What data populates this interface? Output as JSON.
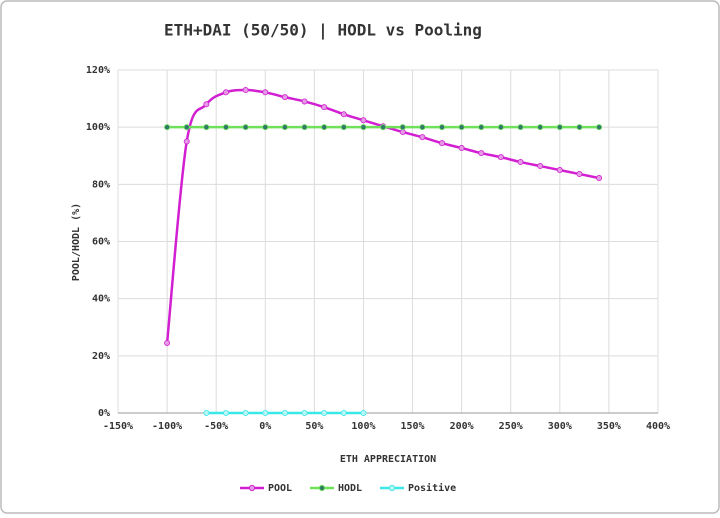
{
  "chart_data": {
    "type": "line",
    "title": "ETH+DAI (50/50) | HODL vs Pooling",
    "x_label": "ETH APPRECIATION",
    "y_label": "POOL/HODL (%)",
    "xlim": [
      -150,
      400
    ],
    "ylim": [
      0,
      120
    ],
    "xticks": [
      {
        "value": -150,
        "label": "-150%"
      },
      {
        "value": -100,
        "label": "-100%"
      },
      {
        "value": -50,
        "label": "-50%"
      },
      {
        "value": 0,
        "label": "0%"
      },
      {
        "value": 50,
        "label": "50%"
      },
      {
        "value": 100,
        "label": "100%"
      },
      {
        "value": 150,
        "label": "150%"
      },
      {
        "value": 200,
        "label": "200%"
      },
      {
        "value": 250,
        "label": "250%"
      },
      {
        "value": 300,
        "label": "300%"
      },
      {
        "value": 350,
        "label": "350%"
      },
      {
        "value": 400,
        "label": "400%"
      }
    ],
    "yticks": [
      {
        "value": 0,
        "label": "0%"
      },
      {
        "value": 20,
        "label": "20%"
      },
      {
        "value": 40,
        "label": "40%"
      },
      {
        "value": 60,
        "label": "60%"
      },
      {
        "value": 80,
        "label": "80%"
      },
      {
        "value": 100,
        "label": "100%"
      },
      {
        "value": 120,
        "label": "120%"
      }
    ],
    "grid": true,
    "legend": "bottom",
    "series": [
      {
        "name": "POOL",
        "color": "#d21fd2",
        "marker_color": "#e59ae5",
        "smooth": true,
        "x": [
          -100,
          -80,
          -60,
          -40,
          -20,
          0,
          20,
          40,
          60,
          80,
          100,
          120,
          140,
          160,
          180,
          200,
          220,
          240,
          260,
          280,
          300,
          320,
          340
        ],
        "values": [
          24.5,
          95,
          108,
          112.2,
          113,
          112.2,
          110.5,
          109,
          107,
          104.5,
          102.4,
          100.3,
          98.3,
          96.5,
          94.4,
          92.7,
          90.9,
          89.5,
          87.8,
          86.4,
          85,
          83.6,
          82.2
        ]
      },
      {
        "name": "HODL",
        "color": "#6ee05a",
        "marker_color": "#2f7a6a",
        "smooth": false,
        "x": [
          -100,
          -80,
          -60,
          -40,
          -20,
          0,
          20,
          40,
          60,
          80,
          100,
          120,
          140,
          160,
          180,
          200,
          220,
          240,
          260,
          280,
          300,
          320,
          340
        ],
        "values": [
          100,
          100,
          100,
          100,
          100,
          100,
          100,
          100,
          100,
          100,
          100,
          100,
          100,
          100,
          100,
          100,
          100,
          100,
          100,
          100,
          100,
          100,
          100
        ]
      },
      {
        "name": "Positive",
        "color": "#3ae8e8",
        "marker_color": "#b9f5f5",
        "smooth": false,
        "x": [
          -60,
          -40,
          -20,
          0,
          20,
          40,
          60,
          80,
          100
        ],
        "values": [
          0,
          0,
          0,
          0,
          0,
          0,
          0,
          0,
          0
        ]
      }
    ]
  }
}
